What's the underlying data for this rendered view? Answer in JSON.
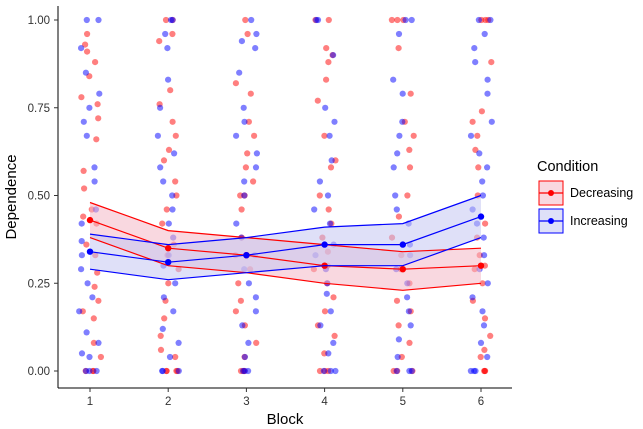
{
  "chart_data": {
    "type": "line",
    "xlabel": "Block",
    "ylabel": "Dependence",
    "x": [
      1,
      2,
      3,
      4,
      5,
      6
    ],
    "x_ticks": [
      "1",
      "2",
      "3",
      "4",
      "5",
      "6"
    ],
    "ylim": [
      0,
      1
    ],
    "y_ticks": [
      "0.00",
      "0.25",
      "0.50",
      "0.75",
      "1.00"
    ],
    "grid": false,
    "legend": {
      "title": "Condition",
      "position": "right",
      "entries": [
        "Decreasing",
        "Increasing"
      ]
    },
    "series": [
      {
        "name": "Decreasing",
        "color": "#ff0000",
        "fill": "#f4b8c6",
        "mean": [
          0.43,
          0.35,
          0.33,
          0.3,
          0.29,
          0.3
        ],
        "ci_low": [
          0.38,
          0.3,
          0.28,
          0.25,
          0.23,
          0.25
        ],
        "ci_high": [
          0.48,
          0.4,
          0.38,
          0.36,
          0.34,
          0.35
        ],
        "points_by_block": [
          [
            0,
            0,
            0,
            0.04,
            0.08,
            0.15,
            0.17,
            0.2,
            0.24,
            0.28,
            0.33,
            0.36,
            0.42,
            0.44,
            0.46,
            0.52,
            0.57,
            0.66,
            0.72,
            0.76,
            0.78,
            0.84,
            0.88,
            0.91,
            0.93,
            0.96
          ],
          [
            0,
            0,
            0,
            0,
            0.04,
            0.06,
            0.1,
            0.15,
            0.2,
            0.25,
            0.29,
            0.33,
            0.36,
            0.42,
            0.46,
            0.5,
            0.54,
            0.6,
            0.63,
            0.67,
            0.71,
            0.76,
            0.8,
            0.94,
            0.96,
            1.0,
            1.0
          ],
          [
            0,
            0,
            0,
            0.04,
            0.08,
            0.13,
            0.17,
            0.2,
            0.25,
            0.29,
            0.33,
            0.38,
            0.46,
            0.5,
            0.5,
            0.54,
            0.58,
            0.62,
            0.67,
            0.71,
            0.79,
            0.82,
            0.96,
            1.0
          ],
          [
            0,
            0,
            0,
            0.05,
            0.1,
            0.13,
            0.17,
            0.21,
            0.25,
            0.29,
            0.3,
            0.34,
            0.38,
            0.42,
            0.46,
            0.5,
            0.58,
            0.6,
            0.67,
            0.77,
            0.83,
            0.88,
            0.9,
            0.92,
            1.0,
            1.0
          ],
          [
            0,
            0,
            0,
            0.04,
            0.08,
            0.13,
            0.17,
            0.2,
            0.25,
            0.29,
            0.33,
            0.38,
            0.44,
            0.5,
            0.58,
            0.63,
            0.67,
            0.71,
            0.79,
            0.92,
            1.0,
            1.0,
            1.0
          ],
          [
            0,
            0,
            0,
            0.04,
            0.06,
            0.1,
            0.15,
            0.2,
            0.25,
            0.29,
            0.3,
            0.33,
            0.38,
            0.42,
            0.5,
            0.58,
            0.63,
            0.67,
            0.71,
            0.74,
            0.88,
            1.0,
            1.0,
            1.0
          ]
        ]
      },
      {
        "name": "Increasing",
        "color": "#0000ff",
        "fill": "#c5c7f2",
        "mean": [
          0.34,
          0.31,
          0.33,
          0.36,
          0.36,
          0.44
        ],
        "ci_low": [
          0.29,
          0.26,
          0.28,
          0.3,
          0.3,
          0.38
        ],
        "ci_high": [
          0.39,
          0.36,
          0.38,
          0.41,
          0.42,
          0.5
        ],
        "points_by_block": [
          [
            0,
            0,
            0,
            0.04,
            0.05,
            0.08,
            0.11,
            0.17,
            0.21,
            0.25,
            0.29,
            0.33,
            0.37,
            0.42,
            0.46,
            0.54,
            0.58,
            0.67,
            0.71,
            0.75,
            0.79,
            0.85,
            0.92,
            1.0,
            1.0
          ],
          [
            0,
            0,
            0,
            0.04,
            0.08,
            0.12,
            0.17,
            0.21,
            0.25,
            0.3,
            0.33,
            0.38,
            0.42,
            0.46,
            0.5,
            0.54,
            0.58,
            0.62,
            0.67,
            0.75,
            0.83,
            0.92,
            0.96,
            1.0,
            1.0
          ],
          [
            0,
            0,
            0,
            0.04,
            0.08,
            0.13,
            0.17,
            0.21,
            0.25,
            0.29,
            0.33,
            0.38,
            0.42,
            0.5,
            0.54,
            0.58,
            0.62,
            0.67,
            0.71,
            0.75,
            0.85,
            0.92,
            0.94,
            0.96,
            1.0
          ],
          [
            0,
            0,
            0,
            0.05,
            0.08,
            0.13,
            0.17,
            0.22,
            0.25,
            0.29,
            0.33,
            0.36,
            0.42,
            0.46,
            0.5,
            0.54,
            0.6,
            0.67,
            0.71,
            0.75,
            0.9,
            1.0,
            1.0
          ],
          [
            0,
            0,
            0,
            0.04,
            0.09,
            0.13,
            0.17,
            0.21,
            0.25,
            0.29,
            0.33,
            0.36,
            0.42,
            0.46,
            0.5,
            0.58,
            0.62,
            0.67,
            0.71,
            0.79,
            0.83,
            0.96,
            1.0,
            1.0
          ],
          [
            0,
            0,
            0,
            0.04,
            0.08,
            0.13,
            0.17,
            0.21,
            0.25,
            0.29,
            0.33,
            0.38,
            0.42,
            0.46,
            0.5,
            0.54,
            0.58,
            0.62,
            0.67,
            0.71,
            0.79,
            0.83,
            0.88,
            0.92,
            0.96,
            1.0,
            1.0
          ]
        ]
      }
    ]
  }
}
